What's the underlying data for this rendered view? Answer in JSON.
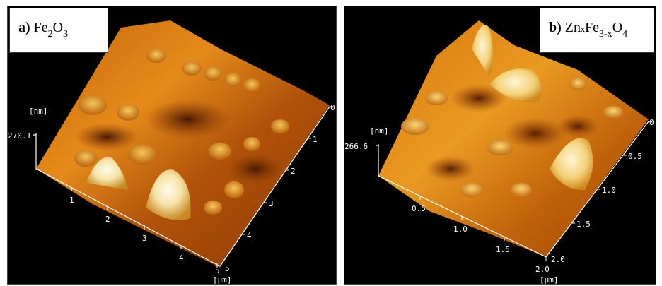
{
  "panels": [
    {
      "letter": "a)",
      "formula": {
        "base1": "Fe",
        "sub1": "2",
        "base2": "O",
        "sub2": "3"
      },
      "z_unit": "[nm]",
      "z_max": "270.1",
      "axis1_ticks": [
        "1",
        "2",
        "3",
        "4",
        "5"
      ],
      "axis2_ticks": [
        "0",
        "1",
        "2",
        "3",
        "4",
        "5"
      ],
      "xy_unit": "[µm]"
    },
    {
      "letter": "b)",
      "formula": {
        "base1": "Zn",
        "sub0": "x",
        "base1b": "Fe",
        "sub1": "3-x",
        "base2": "O",
        "sub2": "4"
      },
      "z_unit": "[nm]",
      "z_max": "266.6",
      "axis1_ticks": [
        "0.5",
        "1.0",
        "1.5",
        "2.0"
      ],
      "axis2_ticks": [
        "0",
        "0.5",
        "1.0",
        "1.5",
        "2.0"
      ],
      "xy_unit": "[µm]"
    }
  ],
  "colors": {
    "low": "#7a2a00",
    "mid": "#d9720f",
    "high": "#f2c14e",
    "peak": "#fff4d6",
    "background": "#000000"
  }
}
